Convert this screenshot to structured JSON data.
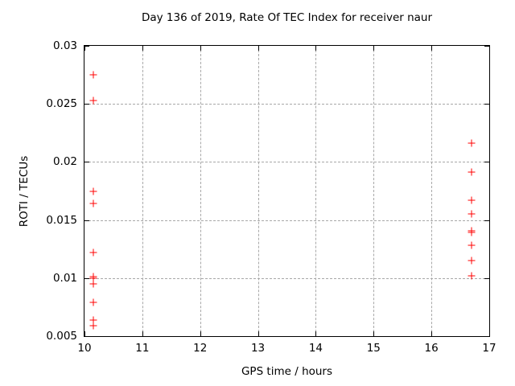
{
  "title": "Day 136 of 2019, Rate Of TEC Index for receiver naur",
  "chart_data": {
    "type": "scatter",
    "title": "Day 136 of 2019, Rate Of TEC Index for receiver naur",
    "xlabel": "GPS time / hours",
    "ylabel": "ROTI / TECUs",
    "xlim": [
      10,
      17
    ],
    "ylim": [
      0.005,
      0.03
    ],
    "xticks": [
      "10",
      "11",
      "12",
      "13",
      "14",
      "15",
      "16",
      "17"
    ],
    "yticks": [
      "0.005",
      "0.01",
      "0.015",
      "0.02",
      "0.025",
      "0.03"
    ],
    "grid": true,
    "legend": "none",
    "marker": {
      "shape": "plus",
      "size": 9
    },
    "colors": {
      "marker": "#ff0000",
      "grid": "#a8a8a8",
      "axis": "#000000",
      "background": "#ffffff",
      "text": "#000000"
    },
    "series": [
      {
        "name": "ROTI",
        "points": [
          [
            10.15,
            0.0275
          ],
          [
            10.15,
            0.0253
          ],
          [
            10.15,
            0.0175
          ],
          [
            10.15,
            0.0164
          ],
          [
            10.15,
            0.0122
          ],
          [
            10.15,
            0.0101
          ],
          [
            10.15,
            0.01
          ],
          [
            10.15,
            0.0095
          ],
          [
            10.15,
            0.0079
          ],
          [
            10.15,
            0.0064
          ],
          [
            10.15,
            0.0059
          ],
          [
            16.7,
            0.0216
          ],
          [
            16.7,
            0.0191
          ],
          [
            16.7,
            0.0167
          ],
          [
            16.7,
            0.0155
          ],
          [
            16.7,
            0.0141
          ],
          [
            16.7,
            0.0139
          ],
          [
            16.7,
            0.0128
          ],
          [
            16.7,
            0.0115
          ],
          [
            16.7,
            0.0102
          ]
        ]
      }
    ]
  }
}
